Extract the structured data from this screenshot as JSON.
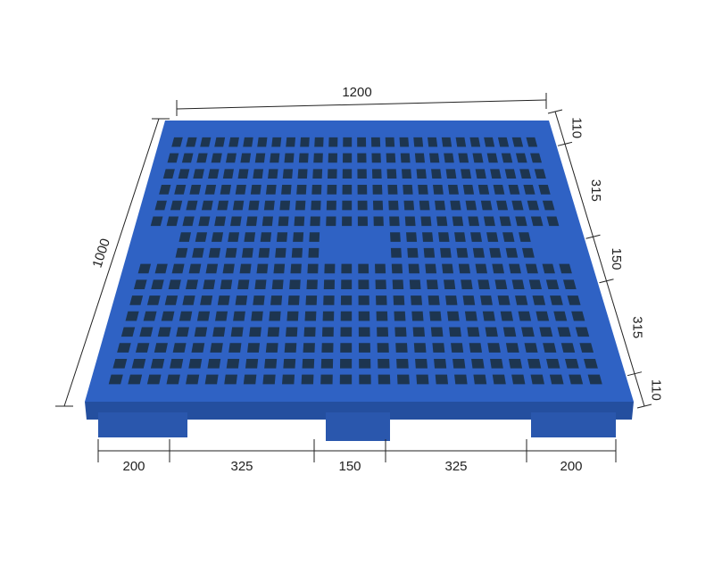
{
  "dimensions": {
    "width_top": "1200",
    "depth_left": "1000",
    "right_side": [
      "110",
      "315",
      "150",
      "315",
      "110"
    ],
    "bottom": [
      "200",
      "325",
      "150",
      "325",
      "200"
    ]
  },
  "colors": {
    "pallet": "#2f62c4",
    "pallet_dark": "#1f4798",
    "hole": "#1d3550"
  }
}
